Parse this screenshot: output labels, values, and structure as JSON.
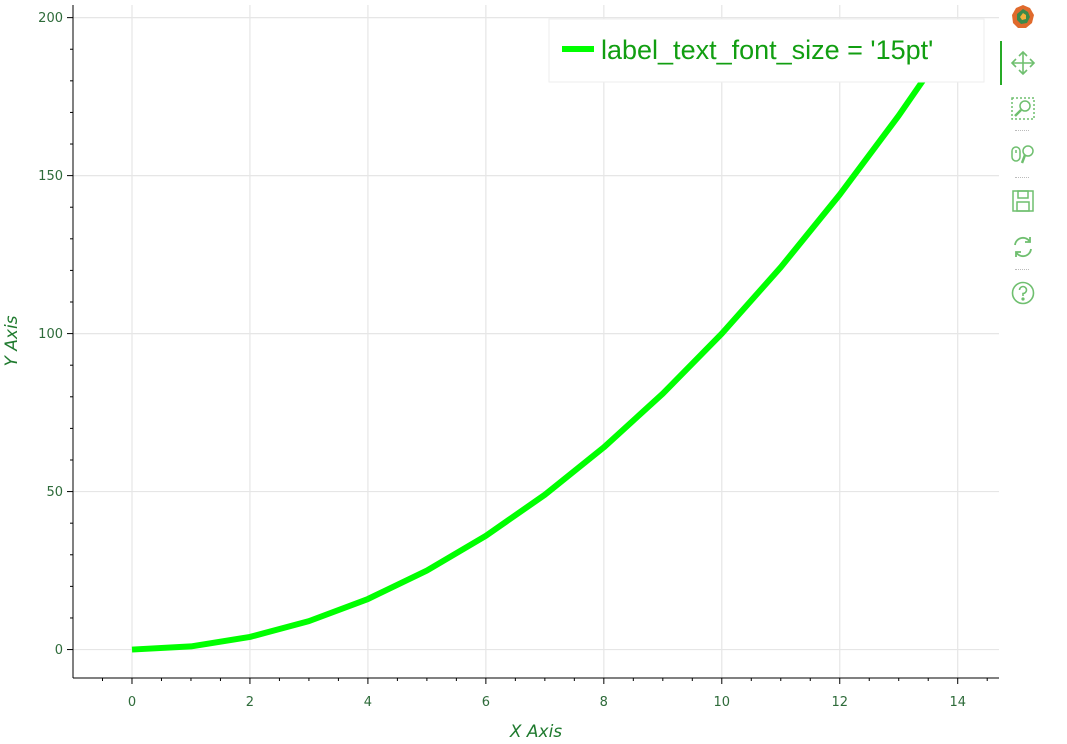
{
  "chart_data": {
    "type": "line",
    "title": "",
    "xlabel": "X Axis",
    "ylabel": "Y Axis",
    "xlim": [
      -1,
      14.7
    ],
    "ylim": [
      -9,
      204
    ],
    "x_ticks": [
      0,
      2,
      4,
      6,
      8,
      10,
      12,
      14
    ],
    "x_tick_labels": [
      "0",
      "2",
      "4",
      "6",
      "8",
      "10",
      "12",
      "14"
    ],
    "y_ticks": [
      0,
      50,
      100,
      150,
      200
    ],
    "y_tick_labels": [
      "0",
      "50",
      "100",
      "150",
      "200"
    ],
    "grid": true,
    "legend_position": "top-right",
    "series": [
      {
        "name": "label_text_font_size = '15pt'",
        "color": "#00ff00",
        "x": [
          0,
          1,
          2,
          3,
          4,
          5,
          6,
          7,
          8,
          9,
          10,
          11,
          12,
          13,
          14
        ],
        "y": [
          0,
          1,
          4,
          9,
          16,
          25,
          36,
          49,
          64,
          81,
          100,
          121,
          144,
          169,
          196
        ]
      }
    ]
  },
  "colors": {
    "line": "#00ff00",
    "legend_text": "#119e11",
    "tick_label": "#2e6b3a",
    "axis_title": "#1f7a2e",
    "grid": "#e6e6e6",
    "toolbar_icon": "#6fbf6f"
  },
  "toolbar": {
    "tools": [
      {
        "name": "bokeh-logo-icon"
      },
      {
        "name": "pan-icon"
      },
      {
        "name": "box-zoom-icon"
      },
      {
        "name": "wheel-zoom-icon"
      },
      {
        "name": "save-icon"
      },
      {
        "name": "reset-icon"
      },
      {
        "name": "help-icon"
      }
    ]
  }
}
